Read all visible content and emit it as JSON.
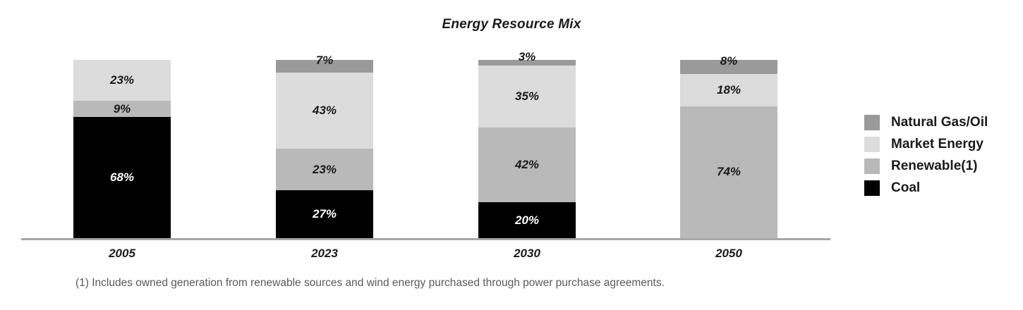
{
  "footnote": "(1) Includes owned generation from renewable sources and wind energy purchased through power purchase agreements.",
  "chart_data": {
    "type": "bar",
    "subtype": "stacked-100-percent-column",
    "title": "Energy Resource Mix",
    "categories": [
      "2005",
      "2023",
      "2030",
      "2050"
    ],
    "series": [
      {
        "name": "Natural Gas/Oil",
        "color": "#9a9a9a",
        "label_color": "#1a1a1a",
        "values": [
          0,
          7,
          3,
          8
        ]
      },
      {
        "name": "Market Energy",
        "color": "#dcdcdc",
        "label_color": "#1a1a1a",
        "values": [
          23,
          43,
          35,
          18
        ]
      },
      {
        "name": "Renewable(1)",
        "color": "#b9b9b9",
        "label_color": "#1a1a1a",
        "values": [
          9,
          23,
          42,
          74
        ]
      },
      {
        "name": "Coal",
        "color": "#000000",
        "label_color": "#ffffff",
        "values": [
          68,
          27,
          20,
          0
        ]
      }
    ],
    "value_suffix": "%",
    "ylim": [
      0,
      100
    ],
    "grid": false,
    "legend_position": "right",
    "axis_line_color": "#a6a6a6"
  }
}
